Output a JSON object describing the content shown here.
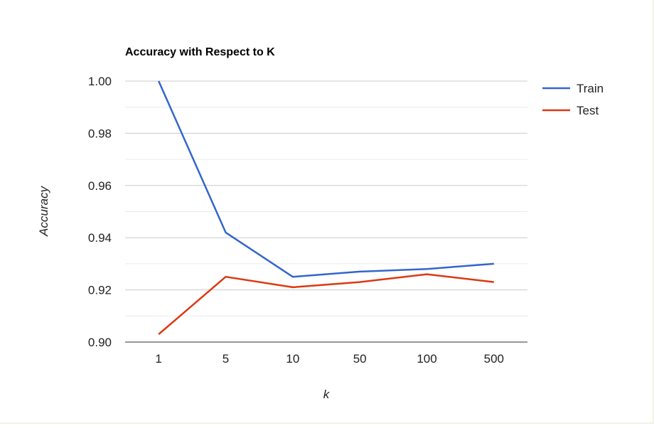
{
  "chart_data": {
    "type": "line",
    "title": "Accuracy with Respect to K",
    "xlabel": "k",
    "ylabel": "Accuracy",
    "categories": [
      "1",
      "5",
      "10",
      "50",
      "100",
      "500"
    ],
    "ylim": [
      0.9,
      1.0
    ],
    "yticks": [
      "0.90",
      "0.92",
      "0.94",
      "0.96",
      "0.98",
      "1.00"
    ],
    "grid": true,
    "legend": "right",
    "series": [
      {
        "name": "Train",
        "color": "#3366cc",
        "values": [
          1.0,
          0.942,
          0.925,
          0.927,
          0.928,
          0.93
        ]
      },
      {
        "name": "Test",
        "color": "#dc3912",
        "values": [
          0.903,
          0.925,
          0.921,
          0.923,
          0.926,
          0.923
        ]
      }
    ]
  }
}
